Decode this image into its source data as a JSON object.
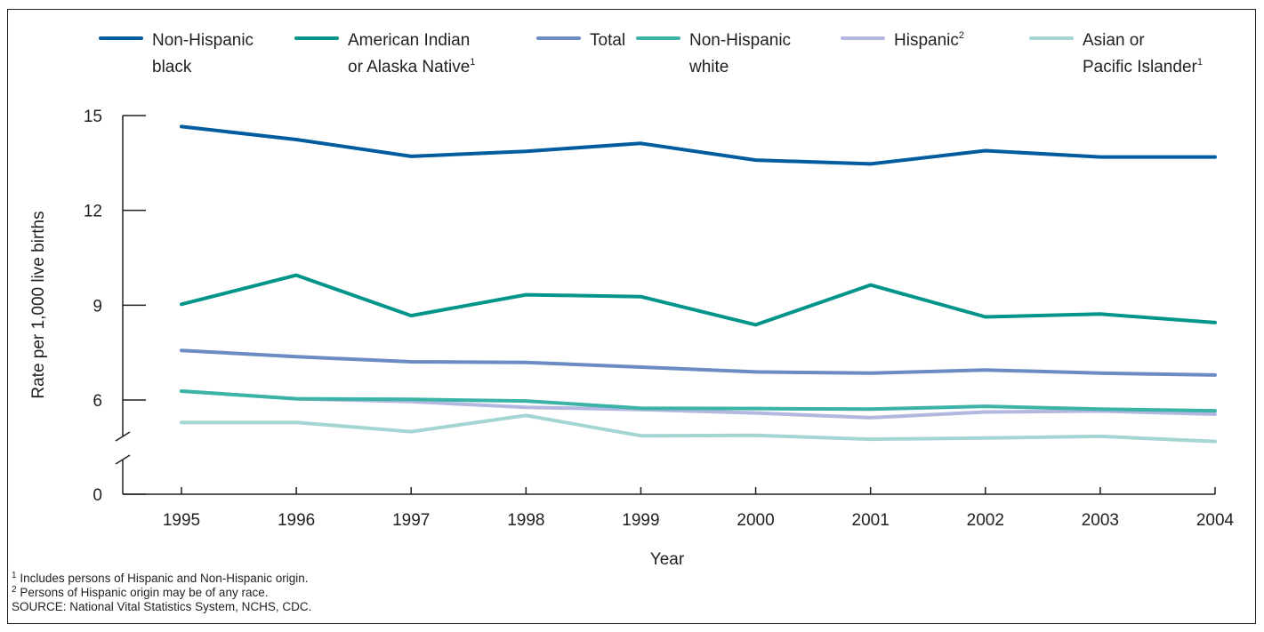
{
  "chart_data": {
    "type": "line",
    "xlabel": "Year",
    "ylabel": "Rate per 1,000 live births",
    "x": [
      1995,
      1996,
      1997,
      1998,
      1999,
      2000,
      2001,
      2002,
      2003,
      2004
    ],
    "x_tick_labels": [
      "1995",
      "1996",
      "1997",
      "1998",
      "1999",
      "2000",
      "2001",
      "2002",
      "2003",
      "2004"
    ],
    "y_tick_labels": [
      "0",
      "6",
      "9",
      "12",
      "15"
    ],
    "y_ticks": [
      0,
      6,
      9,
      12,
      15
    ],
    "ylim": [
      0,
      15
    ],
    "y_axis_break": "between 0 and 6",
    "grid": false,
    "legend_position": "top",
    "series": [
      {
        "name": "Non-Hispanic black",
        "label_lines": [
          "Non-Hispanic",
          "black"
        ],
        "sup": "",
        "color": "#005b9f",
        "values": [
          14.65,
          14.24,
          13.71,
          13.87,
          14.12,
          13.59,
          13.47,
          13.89,
          13.69,
          13.69
        ]
      },
      {
        "name": "American Indian or Alaska Native",
        "label_lines": [
          "American Indian",
          "or Alaska Native"
        ],
        "sup": "1",
        "color": "#00948a",
        "values": [
          9.03,
          9.95,
          8.67,
          9.33,
          9.27,
          8.38,
          9.64,
          8.63,
          8.72,
          8.45
        ]
      },
      {
        "name": "Total",
        "label_lines": [
          "Total"
        ],
        "sup": "",
        "color": "#6b8bc3",
        "values": [
          7.57,
          7.37,
          7.21,
          7.19,
          7.04,
          6.89,
          6.85,
          6.95,
          6.85,
          6.79
        ]
      },
      {
        "name": "Non-Hispanic white",
        "label_lines": [
          "Non-Hispanic",
          "white"
        ],
        "sup": "",
        "color": "#3bb3a7",
        "values": [
          6.28,
          6.04,
          6.02,
          5.97,
          5.74,
          5.73,
          5.71,
          5.8,
          5.71,
          5.66
        ]
      },
      {
        "name": "Hispanic",
        "label_lines": [
          "Hispanic"
        ],
        "sup": "2",
        "color": "#b3b8e0",
        "values": [
          6.28,
          6.04,
          5.95,
          5.77,
          5.7,
          5.59,
          5.44,
          5.62,
          5.65,
          5.55
        ]
      },
      {
        "name": "Asian or Pacific Islander",
        "label_lines": [
          "Asian or",
          "Pacific Islander"
        ],
        "sup": "1",
        "color": "#a3d5d3",
        "values": [
          5.29,
          5.29,
          5.0,
          5.51,
          4.87,
          4.88,
          4.76,
          4.8,
          4.85,
          4.69
        ]
      }
    ]
  },
  "notes": {
    "note1_sup": "1",
    "note1": "Includes persons of Hispanic and Non-Hispanic origin.",
    "note2_sup": "2",
    "note2": "Persons of Hispanic origin may be of any race.",
    "source": "SOURCE: National Vital Statistics System, NCHS, CDC."
  }
}
